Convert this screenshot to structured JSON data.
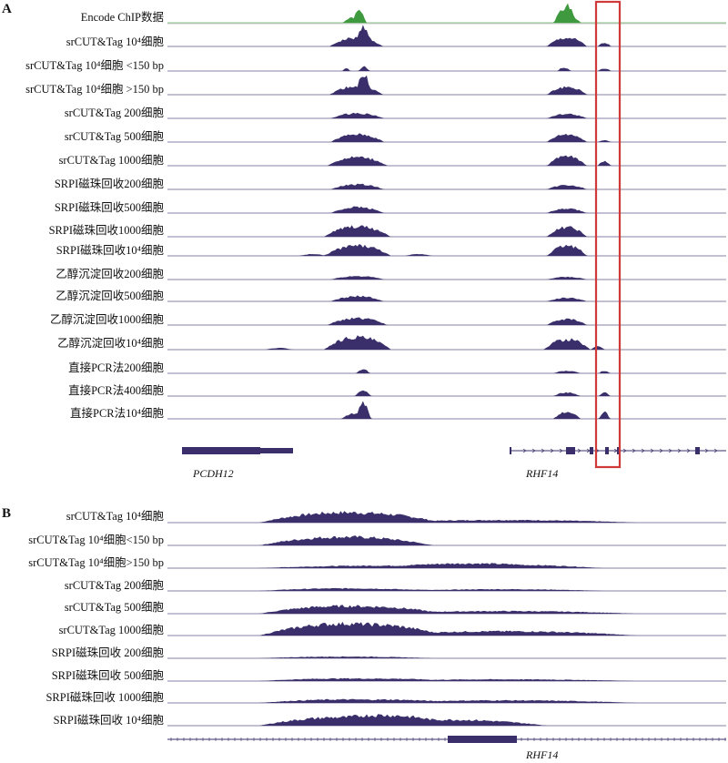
{
  "panels": [
    {
      "letter": "A",
      "tracks": [
        {
          "label": "Encode ChIP数据",
          "color": "#3f9a3f",
          "peaks": [
            {
              "c": 0.333,
              "h": 6,
              "w": 0.016
            },
            {
              "c": 0.345,
              "h": 10,
              "w": 0.009
            },
            {
              "c": 0.71,
              "h": 18,
              "w": 0.015
            },
            {
              "c": 0.725,
              "h": 6,
              "w": 0.012
            }
          ]
        },
        {
          "label": "srCUT&Tag 10⁴细胞",
          "color": "#3a2f6b",
          "peaks": [
            {
              "c": 0.338,
              "h": 10,
              "w": 0.04
            },
            {
              "c": 0.352,
              "h": 14,
              "w": 0.01
            },
            {
              "c": 0.715,
              "h": 10,
              "w": 0.03
            },
            {
              "c": 0.782,
              "h": 4,
              "w": 0.01
            }
          ]
        },
        {
          "label": "srCUT&Tag 10⁴细胞 <150 bp",
          "color": "#3a2f6b",
          "peaks": [
            {
              "c": 0.32,
              "h": 3,
              "w": 0.006
            },
            {
              "c": 0.352,
              "h": 5,
              "w": 0.008
            },
            {
              "c": 0.71,
              "h": 4,
              "w": 0.01
            },
            {
              "c": 0.782,
              "h": 3,
              "w": 0.01
            }
          ]
        },
        {
          "label": "srCUT&Tag 10⁴细胞 >150 bp",
          "color": "#3a2f6b",
          "peaks": [
            {
              "c": 0.338,
              "h": 10,
              "w": 0.04
            },
            {
              "c": 0.352,
              "h": 13,
              "w": 0.01
            },
            {
              "c": 0.715,
              "h": 9,
              "w": 0.03
            }
          ]
        },
        {
          "label": "srCUT&Tag 200细胞",
          "color": "#3a2f6b",
          "peaks": [
            {
              "c": 0.34,
              "h": 6,
              "w": 0.04
            },
            {
              "c": 0.715,
              "h": 5,
              "w": 0.03
            }
          ]
        },
        {
          "label": "srCUT&Tag 500细胞",
          "color": "#3a2f6b",
          "peaks": [
            {
              "c": 0.34,
              "h": 9,
              "w": 0.04
            },
            {
              "c": 0.715,
              "h": 9,
              "w": 0.03
            },
            {
              "c": 0.782,
              "h": 2,
              "w": 0.01
            }
          ]
        },
        {
          "label": "srCUT&Tag 1000细胞",
          "color": "#3a2f6b",
          "peaks": [
            {
              "c": 0.34,
              "h": 10,
              "w": 0.045
            },
            {
              "c": 0.715,
              "h": 11,
              "w": 0.03
            },
            {
              "c": 0.782,
              "h": 5,
              "w": 0.01
            }
          ]
        },
        {
          "label": "SRPI磁珠回收200细胞",
          "color": "#3a2f6b",
          "peaks": [
            {
              "c": 0.34,
              "h": 6,
              "w": 0.04
            },
            {
              "c": 0.715,
              "h": 5,
              "w": 0.03
            }
          ]
        },
        {
          "label": "SRPI磁珠回收500细胞",
          "color": "#3a2f6b",
          "peaks": [
            {
              "c": 0.34,
              "h": 7,
              "w": 0.04
            },
            {
              "c": 0.715,
              "h": 5,
              "w": 0.03
            }
          ]
        },
        {
          "label": "SRPI磁珠回收1000细胞",
          "color": "#3a2f6b",
          "peaks": [
            {
              "c": 0.34,
              "h": 12,
              "w": 0.05
            },
            {
              "c": 0.715,
              "h": 11,
              "w": 0.03
            }
          ]
        },
        {
          "label": "SRPI磁珠回收10⁴细胞",
          "color": "#3a2f6b",
          "peaks": [
            {
              "c": 0.34,
              "h": 12,
              "w": 0.05
            },
            {
              "c": 0.715,
              "h": 12,
              "w": 0.03
            },
            {
              "c": 0.26,
              "h": 2,
              "w": 0.02
            },
            {
              "c": 0.45,
              "h": 2,
              "w": 0.02
            }
          ]
        },
        {
          "label": "乙醇沉淀回收200细胞",
          "color": "#3a2f6b",
          "peaks": [
            {
              "c": 0.34,
              "h": 4,
              "w": 0.04
            },
            {
              "c": 0.715,
              "h": 3,
              "w": 0.03
            }
          ]
        },
        {
          "label": "乙醇沉淀回收500细胞",
          "color": "#3a2f6b",
          "peaks": [
            {
              "c": 0.34,
              "h": 6,
              "w": 0.04
            },
            {
              "c": 0.715,
              "h": 4,
              "w": 0.03
            }
          ]
        },
        {
          "label": "乙醇沉淀回收1000细胞",
          "color": "#3a2f6b",
          "peaks": [
            {
              "c": 0.34,
              "h": 8,
              "w": 0.045
            },
            {
              "c": 0.715,
              "h": 7,
              "w": 0.03
            }
          ]
        },
        {
          "label": "乙醇沉淀回收10⁴细胞",
          "color": "#3a2f6b",
          "peaks": [
            {
              "c": 0.34,
              "h": 15,
              "w": 0.05
            },
            {
              "c": 0.715,
              "h": 12,
              "w": 0.035
            },
            {
              "c": 0.77,
              "h": 4,
              "w": 0.01
            },
            {
              "c": 0.2,
              "h": 2,
              "w": 0.02
            }
          ]
        },
        {
          "label": "直接PCR法200细胞",
          "color": "#3a2f6b",
          "peaks": [
            {
              "c": 0.35,
              "h": 5,
              "w": 0.01
            },
            {
              "c": 0.715,
              "h": 3,
              "w": 0.02
            },
            {
              "c": 0.782,
              "h": 3,
              "w": 0.008
            }
          ]
        },
        {
          "label": "直接PCR法400细胞",
          "color": "#3a2f6b",
          "peaks": [
            {
              "c": 0.35,
              "h": 6,
              "w": 0.012
            },
            {
              "c": 0.715,
              "h": 4,
              "w": 0.02
            },
            {
              "c": 0.782,
              "h": 4,
              "w": 0.008
            }
          ]
        },
        {
          "label": "直接PCR法10⁴细胞",
          "color": "#3a2f6b",
          "peaks": [
            {
              "c": 0.335,
              "h": 6,
              "w": 0.02
            },
            {
              "c": 0.352,
              "h": 15,
              "w": 0.01
            },
            {
              "c": 0.715,
              "h": 8,
              "w": 0.02
            },
            {
              "c": 0.782,
              "h": 8,
              "w": 0.008
            }
          ]
        }
      ],
      "genes": [
        "PCDH12",
        "RHF14"
      ]
    },
    {
      "letter": "B",
      "tracks": [
        {
          "label": "srCUT&Tag 10⁴细胞",
          "color": "#3a2f6b",
          "peaks": [
            {
              "c": 0.32,
              "h": 12,
              "w": 0.13
            },
            {
              "c": 0.6,
              "h": 3,
              "w": 0.2
            }
          ]
        },
        {
          "label": "srCUT&Tag 10⁴细胞<150 bp",
          "color": "#3a2f6b",
          "peaks": [
            {
              "c": 0.32,
              "h": 10,
              "w": 0.13
            }
          ]
        },
        {
          "label": "srCUT&Tag 10⁴细胞>150 bp",
          "color": "#3a2f6b",
          "peaks": [
            {
              "c": 0.4,
              "h": 3,
              "w": 0.2
            },
            {
              "c": 0.6,
              "h": 4,
              "w": 0.15
            }
          ]
        },
        {
          "label": "srCUT&Tag 200细胞",
          "color": "#3a2f6b",
          "peaks": [
            {
              "c": 0.32,
              "h": 3,
              "w": 0.13
            },
            {
              "c": 0.6,
              "h": 2,
              "w": 0.15
            }
          ]
        },
        {
          "label": "srCUT&Tag 500细胞",
          "color": "#3a2f6b",
          "peaks": [
            {
              "c": 0.32,
              "h": 9,
              "w": 0.13
            },
            {
              "c": 0.6,
              "h": 3,
              "w": 0.2
            }
          ]
        },
        {
          "label": "srCUT&Tag 1000细胞",
          "color": "#3a2f6b",
          "peaks": [
            {
              "c": 0.32,
              "h": 14,
              "w": 0.13
            },
            {
              "c": 0.6,
              "h": 5,
              "w": 0.2
            }
          ]
        },
        {
          "label": "SRPI磁珠回收 200细胞",
          "color": "#3a2f6b",
          "peaks": [
            {
              "c": 0.32,
              "h": 2,
              "w": 0.13
            }
          ]
        },
        {
          "label": "SRPI磁珠回收 500细胞",
          "color": "#3a2f6b",
          "peaks": [
            {
              "c": 0.32,
              "h": 3,
              "w": 0.13
            },
            {
              "c": 0.6,
              "h": 2,
              "w": 0.2
            }
          ]
        },
        {
          "label": "SRPI磁珠回收 1000细胞",
          "color": "#3a2f6b",
          "peaks": [
            {
              "c": 0.32,
              "h": 4,
              "w": 0.13
            },
            {
              "c": 0.6,
              "h": 3,
              "w": 0.2
            }
          ]
        },
        {
          "label": "SRPI磁珠回收 10⁴细胞",
          "color": "#3a2f6b",
          "peaks": [
            {
              "c": 0.32,
              "h": 10,
              "w": 0.13
            },
            {
              "c": 0.5,
              "h": 7,
              "w": 0.15
            }
          ]
        }
      ],
      "genes": [
        "RHF14"
      ]
    }
  ]
}
